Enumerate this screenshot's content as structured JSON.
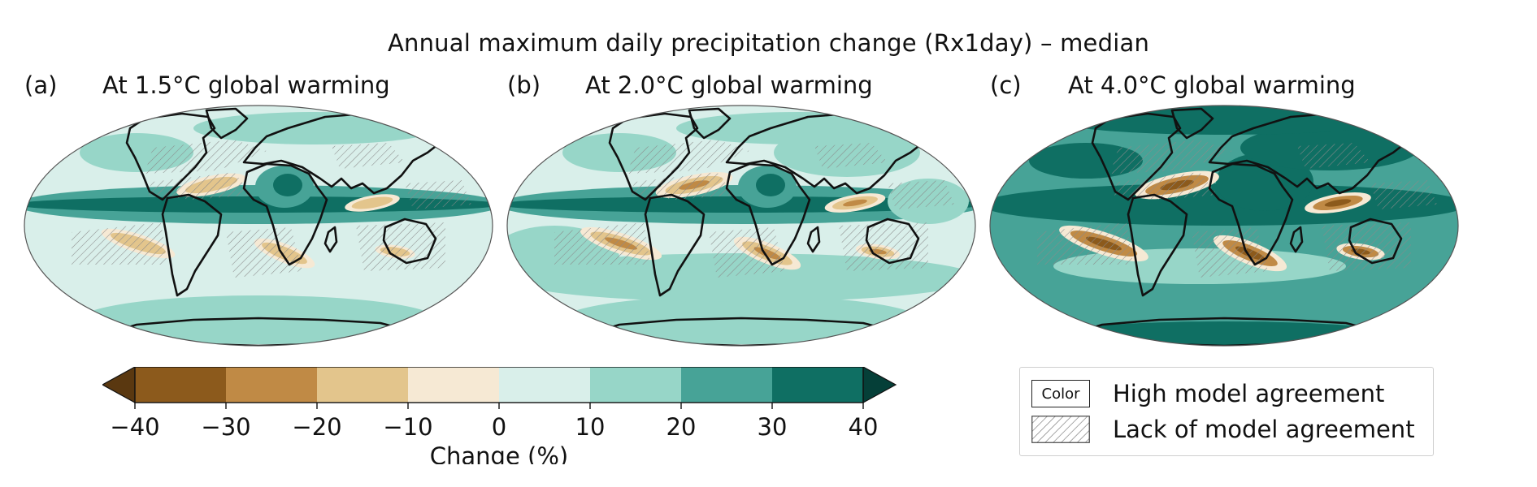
{
  "figure": {
    "title": "Annual maximum daily precipitation change (Rx1day) – median"
  },
  "panels": [
    {
      "letter": "(a)",
      "title": "At 1.5°C global warming",
      "level": 1
    },
    {
      "letter": "(b)",
      "title": "At 2.0°C global warming",
      "level": 2
    },
    {
      "letter": "(c)",
      "title": "At 4.0°C global warming",
      "level": 3
    }
  ],
  "colorbar": {
    "label": "Change (%)",
    "ticks": [
      "−40",
      "−30",
      "−20",
      "−10",
      "0",
      "10",
      "20",
      "30",
      "40"
    ],
    "colors": [
      "#8c5a1c",
      "#c08a45",
      "#e3c58c",
      "#f6e9d4",
      "#d9efea",
      "#97d6c8",
      "#47a397",
      "#0f6f63"
    ],
    "extend_low_color": "#5a3810",
    "extend_high_color": "#053f38"
  },
  "legend": {
    "color_swatch_text": "Color",
    "high_agreement": "High model agreement",
    "lack_agreement": "Lack of model agreement"
  }
}
